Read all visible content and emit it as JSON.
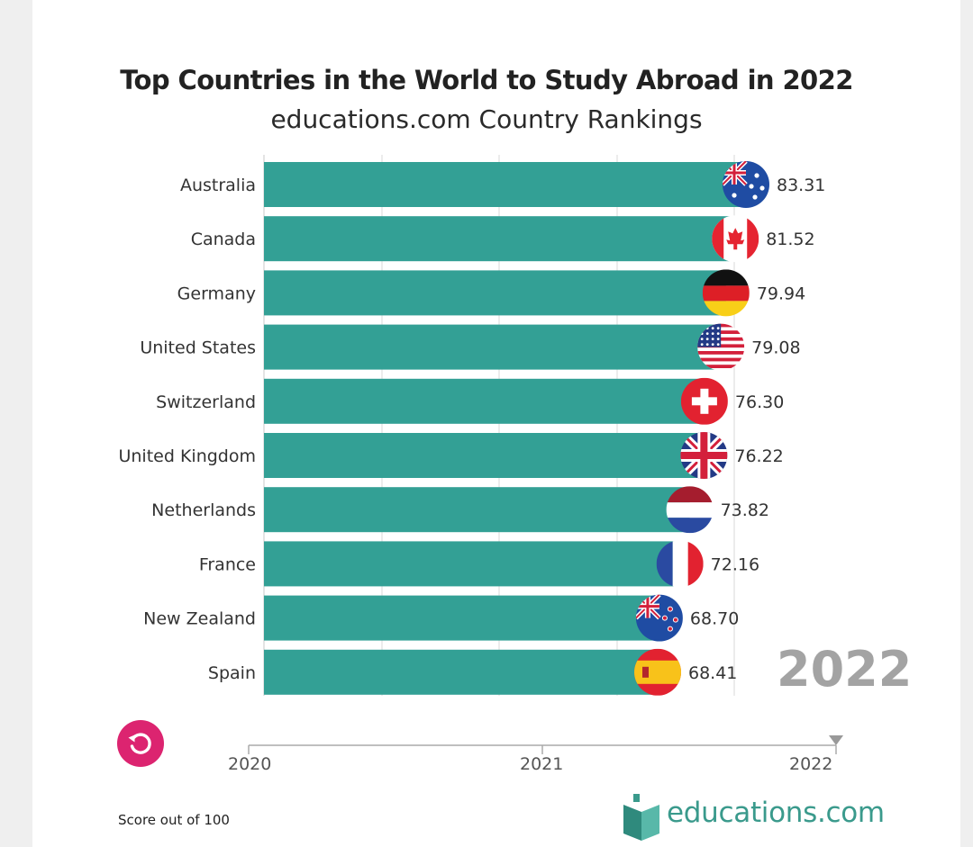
{
  "title": "Top Countries in the World to Study Abroad in 2022",
  "subtitle": "educations.com Country Rankings",
  "current_year_display": "2022",
  "footnote": "Score out of 100",
  "brand": {
    "name": "educations.com"
  },
  "colors": {
    "bar": "#33a095",
    "accent": "#dc2470",
    "watermark": "#a3a3a3",
    "brand": "#3a9a8c"
  },
  "timeline": {
    "labels": [
      "2020",
      "2021",
      "2022"
    ],
    "current": "2022"
  },
  "replay": {
    "icon": "replay-icon"
  },
  "chart_data": {
    "type": "bar",
    "orientation": "horizontal",
    "categories": [
      "Australia",
      "Canada",
      "Germany",
      "United States",
      "Switzerland",
      "United Kingdom",
      "Netherlands",
      "France",
      "New Zealand",
      "Spain"
    ],
    "values": [
      83.31,
      81.52,
      79.94,
      79.08,
      76.3,
      76.22,
      73.82,
      72.16,
      68.7,
      68.41
    ],
    "value_labels": [
      "83.31",
      "81.52",
      "79.94",
      "79.08",
      "76.30",
      "76.22",
      "73.82",
      "72.16",
      "68.70",
      "68.41"
    ],
    "flags": [
      "australia-flag-icon",
      "canada-flag-icon",
      "germany-flag-icon",
      "usa-flag-icon",
      "switzerland-flag-icon",
      "uk-flag-icon",
      "netherlands-flag-icon",
      "france-flag-icon",
      "new-zealand-flag-icon",
      "spain-flag-icon"
    ],
    "title": "Top Countries in the World to Study Abroad in 2022",
    "subtitle": "educations.com Country Rankings",
    "grid": true
  }
}
